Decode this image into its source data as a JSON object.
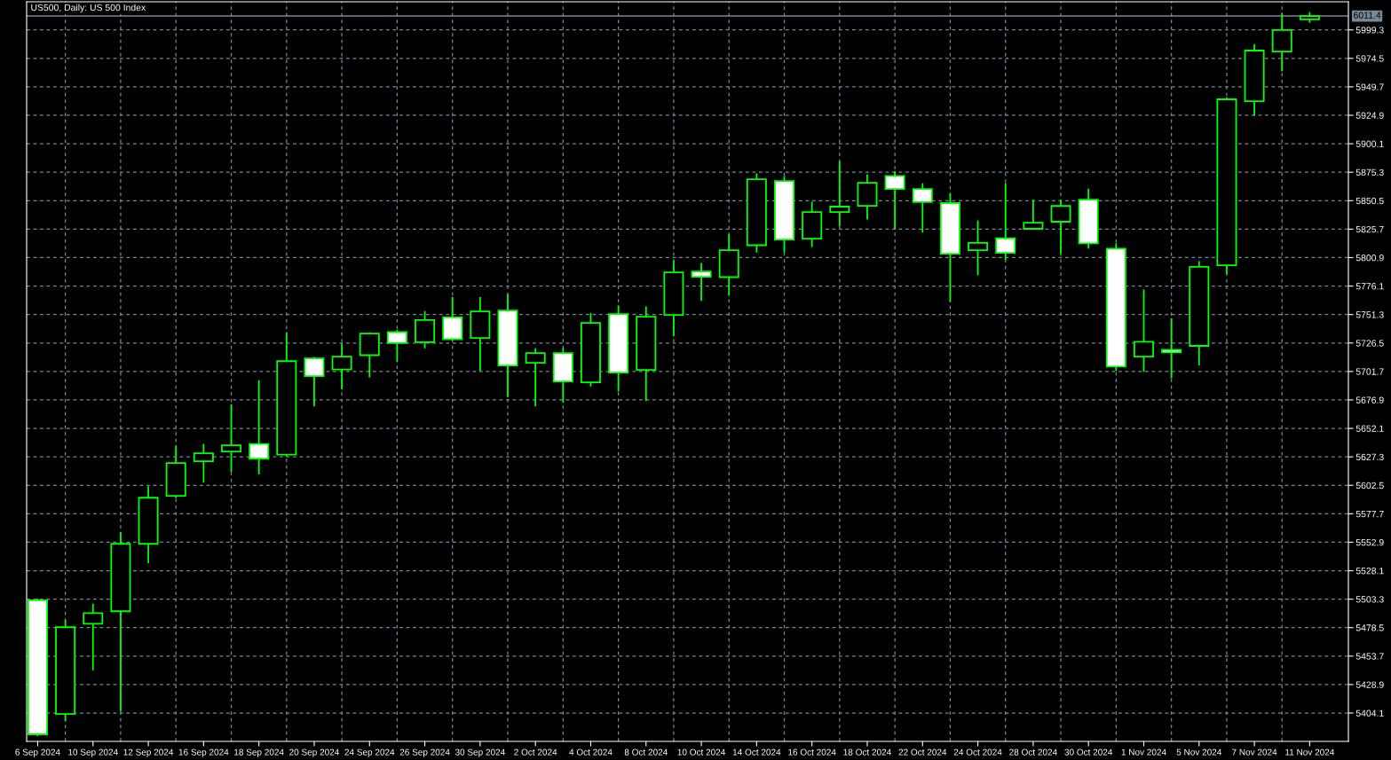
{
  "chart_data": {
    "type": "candlestick",
    "title": "US500, Daily: US 500 Index",
    "categories": [
      "6 Sep 2024",
      null,
      "10 Sep 2024",
      null,
      "12 Sep 2024",
      null,
      "16 Sep 2024",
      null,
      "18 Sep 2024",
      null,
      "20 Sep 2024",
      null,
      "24 Sep 2024",
      null,
      "26 Sep 2024",
      null,
      "30 Sep 2024",
      null,
      "2 Oct 2024",
      null,
      "4 Oct 2024",
      null,
      "8 Oct 2024",
      null,
      "10 Oct 2024",
      null,
      "14 Oct 2024",
      null,
      "16 Oct 2024",
      null,
      "18 Oct 2024",
      null,
      "22 Oct 2024",
      null,
      "24 Oct 2024",
      null,
      "28 Oct 2024",
      null,
      "30 Oct 2024",
      null,
      "1 Nov 2024",
      null,
      "5 Nov 2024",
      null,
      "7 Nov 2024",
      null,
      "11 Nov 2024"
    ],
    "ohlc": [
      [
        5502.3,
        5504.0,
        5384.0,
        5385.6
      ],
      [
        5403.3,
        5485.3,
        5396.9,
        5478.9
      ],
      [
        5481.9,
        5499.4,
        5441.4,
        5491.2
      ],
      [
        5492.8,
        5561.8,
        5405.4,
        5551.5
      ],
      [
        5551.5,
        5601.8,
        5534.7,
        5591.7
      ],
      [
        5593.3,
        5637.0,
        5591.4,
        5621.9
      ],
      [
        5623.4,
        5638.6,
        5604.8,
        5630.4
      ],
      [
        5631.9,
        5673.1,
        5614.1,
        5637.3
      ],
      [
        5638.6,
        5694.0,
        5612.0,
        5625.7
      ],
      [
        5629.3,
        5735.7,
        5627.5,
        5710.7
      ],
      [
        5713.1,
        5714.3,
        5671.3,
        5697.6
      ],
      [
        5703.5,
        5726.2,
        5686.2,
        5714.6
      ],
      [
        5715.9,
        5735.7,
        5696.5,
        5734.7
      ],
      [
        5736.0,
        5738.0,
        5710.4,
        5726.4
      ],
      [
        5727.2,
        5754.3,
        5721.8,
        5746.5
      ],
      [
        5748.9,
        5766.6,
        5728.8,
        5729.8
      ],
      [
        5730.9,
        5766.6,
        5702.0,
        5754.0
      ],
      [
        5754.8,
        5769.0,
        5679.3,
        5706.9
      ],
      [
        5709.2,
        5722.0,
        5671.3,
        5717.7
      ],
      [
        5717.7,
        5722.0,
        5674.4,
        5693.0
      ],
      [
        5692.2,
        5752.5,
        5688.6,
        5744.0
      ],
      [
        5751.7,
        5759.2,
        5684.2,
        5700.7
      ],
      [
        5703.0,
        5758.4,
        5676.0,
        5749.4
      ],
      [
        5750.9,
        5798.3,
        5732.4,
        5788.1
      ],
      [
        5788.8,
        5796.3,
        5763.3,
        5784.2
      ],
      [
        5783.9,
        5821.3,
        5767.9,
        5807.4
      ],
      [
        5811.7,
        5874.3,
        5805.3,
        5869.2
      ],
      [
        5867.7,
        5871.8,
        5805.3,
        5816.7
      ],
      [
        5817.4,
        5849.6,
        5810.2,
        5840.6
      ],
      [
        5840.6,
        5884.9,
        5828.3,
        5845.3
      ],
      [
        5846.0,
        5873.3,
        5834.1,
        5866.1
      ],
      [
        5872.0,
        5876.2,
        5825.6,
        5860.7
      ],
      [
        5860.7,
        5865.7,
        5822.7,
        5849.3
      ],
      [
        5848.4,
        5856.8,
        5762.5,
        5804.2
      ],
      [
        5807.3,
        5833.3,
        5785.5,
        5813.7
      ],
      [
        5817.7,
        5865.7,
        5798.9,
        5805.1
      ],
      [
        5826.0,
        5851.2,
        5825.8,
        5831.3
      ],
      [
        5832.2,
        5850.9,
        5804.2,
        5845.9
      ],
      [
        5851.4,
        5860.9,
        5808.7,
        5813.4
      ],
      [
        5808.7,
        5813.4,
        5702.1,
        5706.0
      ],
      [
        5714.7,
        5773.1,
        5701.3,
        5727.6
      ],
      [
        5720.6,
        5748.0,
        5695.7,
        5718.3
      ],
      [
        5724.0,
        5797.8,
        5706.9,
        5792.8
      ],
      [
        5794.2,
        5940.6,
        5786.5,
        5938.8
      ],
      [
        5937.2,
        5987.0,
        5924.6,
        5981.3
      ],
      [
        5980.5,
        6014.2,
        5963.2,
        5999.1
      ],
      [
        6008.4,
        6014.8,
        6005.5,
        6011.4
      ]
    ],
    "color": "#00ff00",
    "ylim": [
      5379.4,
      6023.8
    ],
    "yticks": [
      5404.1,
      5428.9,
      5453.7,
      5478.5,
      5503.3,
      5528.1,
      5552.9,
      5577.7,
      5602.5,
      5627.3,
      5652.1,
      5676.9,
      5701.7,
      5726.5,
      5751.3,
      5776.1,
      5800.9,
      5825.7,
      5850.5,
      5875.3,
      5900.1,
      5924.9,
      5949.7,
      5974.5,
      5999.3
    ],
    "grid": true,
    "ref_lines": [
      {
        "axis": "y",
        "value": 6011.4,
        "label": "6011.4",
        "color": "#778899"
      }
    ]
  }
}
